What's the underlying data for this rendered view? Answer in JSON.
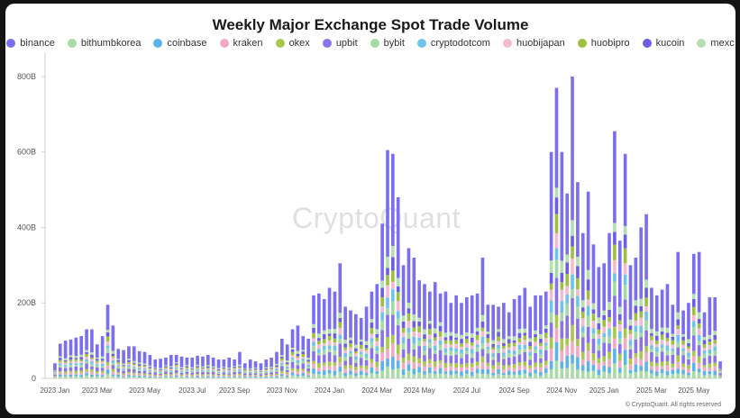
{
  "chart_data": {
    "type": "bar",
    "stacked": true,
    "title": "Weekly Major Exchange Spot Trade Volume",
    "ylim": [
      0,
      850
    ],
    "y_ticks": [
      "0",
      "200B",
      "400B",
      "600B",
      "800B"
    ],
    "x_ticks": [
      "2023 Jan",
      "2023 Mar",
      "2023 May",
      "2023 Jul",
      "2023 Sep",
      "2023 Nov",
      "2024 Jan",
      "2024 Mar",
      "2024 May",
      "2024 Jul",
      "2024 Sep",
      "2024 Nov",
      "2025 Jan",
      "2025 Mar",
      "2025 May"
    ],
    "x_tick_week_index": [
      0,
      8,
      17,
      26,
      34,
      43,
      52,
      61,
      69,
      78,
      87,
      96,
      104,
      113,
      121
    ],
    "grid": false,
    "legend_position": "top",
    "series": [
      {
        "name": "binance",
        "color": "#7b6ef0"
      },
      {
        "name": "bithumbkorea",
        "color": "#a8dca4"
      },
      {
        "name": "coinbase",
        "color": "#5bb4e8"
      },
      {
        "name": "kraken",
        "color": "#f3a8c6"
      },
      {
        "name": "okex",
        "color": "#a9c74c"
      },
      {
        "name": "upbit",
        "color": "#8a72ea"
      },
      {
        "name": "bybit",
        "color": "#a3d9a3"
      },
      {
        "name": "cryptodotcom",
        "color": "#6cc4ec"
      },
      {
        "name": "huobijapan",
        "color": "#f6b9d2"
      },
      {
        "name": "huobipro",
        "color": "#9ec03f"
      },
      {
        "name": "kucoin",
        "color": "#6c5de6"
      },
      {
        "name": "mexc",
        "color": "#b3e0b0"
      }
    ],
    "weekly_totals": [
      40,
      92,
      100,
      103,
      108,
      112,
      130,
      130,
      90,
      112,
      195,
      140,
      78,
      75,
      85,
      85,
      72,
      70,
      62,
      50,
      52,
      55,
      62,
      62,
      58,
      55,
      55,
      60,
      58,
      62,
      55,
      50,
      50,
      55,
      50,
      70,
      40,
      50,
      45,
      40,
      50,
      55,
      70,
      105,
      90,
      130,
      140,
      112,
      105,
      220,
      225,
      210,
      240,
      230,
      305,
      190,
      180,
      170,
      160,
      190,
      230,
      250,
      410,
      605,
      595,
      480,
      300,
      345,
      320,
      260,
      250,
      230,
      255,
      225,
      230,
      200,
      220,
      200,
      215,
      220,
      225,
      320,
      195,
      195,
      190,
      200,
      175,
      210,
      220,
      240,
      190,
      220,
      220,
      230,
      600,
      770,
      600,
      490,
      800,
      520,
      385,
      495,
      355,
      295,
      305,
      385,
      655,
      365,
      595,
      300,
      320,
      400,
      435,
      240,
      220,
      235,
      250,
      195,
      335,
      180,
      200,
      330,
      335,
      175,
      215,
      215,
      45
    ]
  },
  "watermark": "CryptoQuant",
  "copyright": "© CryptoQuant. All rights reserved"
}
